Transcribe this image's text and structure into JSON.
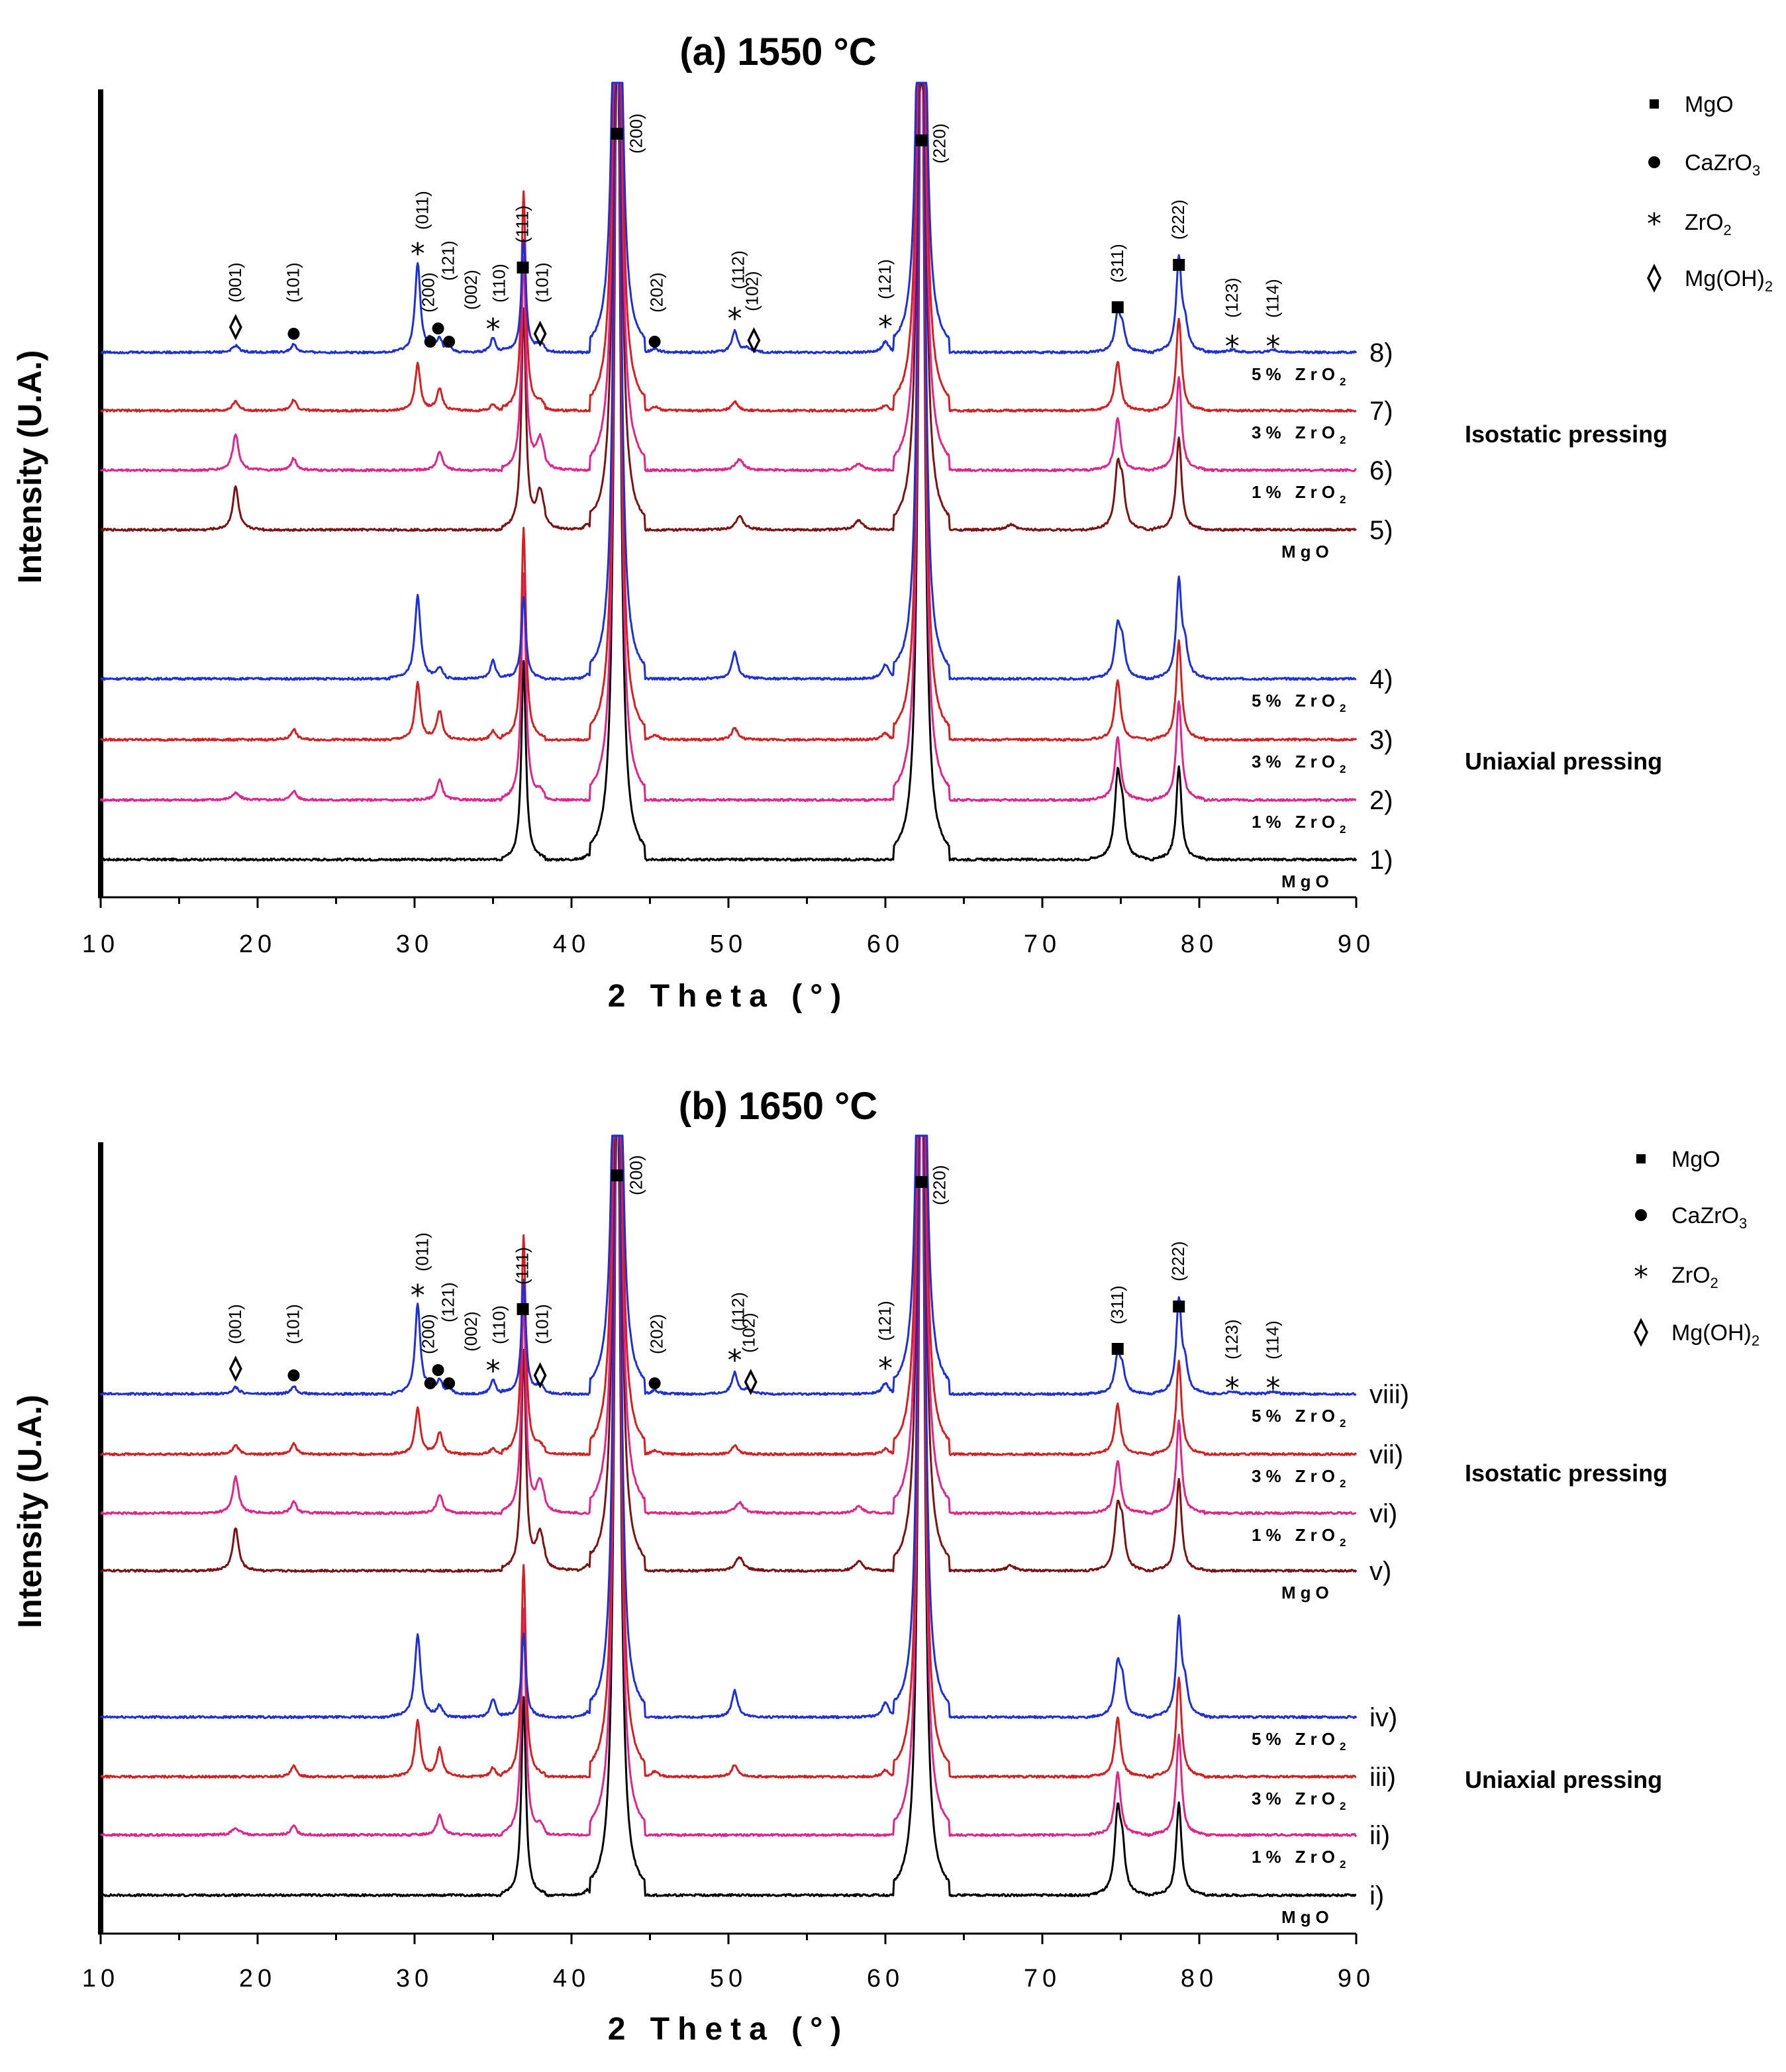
{
  "chart_data": [
    {
      "type": "line",
      "title": "(a) 1550 °C",
      "xlabel": "2 Theta (°)",
      "ylabel": "Intensity (U.A.)",
      "xlim": [
        10,
        90
      ],
      "xticks": [
        "10",
        "20",
        "30",
        "40",
        "50",
        "60",
        "70",
        "80",
        "90"
      ],
      "groups": [
        {
          "name": "Uniaxial pressing",
          "series_ids": [
            "1)",
            "2)",
            "3)",
            "4)"
          ]
        },
        {
          "name": "Isostatic pressing",
          "series_ids": [
            "5)",
            "6)",
            "7)",
            "8)"
          ]
        }
      ],
      "series": [
        {
          "id": "1)",
          "composition": "MgO",
          "color": "#000000"
        },
        {
          "id": "2)",
          "composition": "1% ZrO2",
          "color": "#e0248a"
        },
        {
          "id": "3)",
          "composition": "3% ZrO2",
          "color": "#d42020"
        },
        {
          "id": "4)",
          "composition": "5% ZrO2",
          "color": "#1d2fd8"
        },
        {
          "id": "5)",
          "composition": "MgO",
          "color": "#7d1212"
        },
        {
          "id": "6)",
          "composition": "1% ZrO2",
          "color": "#e0248a"
        },
        {
          "id": "7)",
          "composition": "3% ZrO2",
          "color": "#d42020"
        },
        {
          "id": "8)",
          "composition": "5% ZrO2",
          "color": "#1d2fd8"
        }
      ],
      "peak_annotations": [
        {
          "two_theta": 18.6,
          "hkl": "(001)",
          "phase": "Mg(OH)2"
        },
        {
          "two_theta": 22.3,
          "hkl": "(101)",
          "phase": "CaZrO3"
        },
        {
          "two_theta": 30.2,
          "hkl": "(011)",
          "phase": "ZrO2"
        },
        {
          "two_theta": 31.0,
          "hkl": "(200)",
          "phase": "CaZrO3"
        },
        {
          "two_theta": 31.5,
          "hkl": "(121)",
          "phase": "CaZrO3"
        },
        {
          "two_theta": 32.2,
          "hkl": "(002)",
          "phase": "CaZrO3"
        },
        {
          "two_theta": 35.0,
          "hkl": "(110)",
          "phase": "ZrO2"
        },
        {
          "two_theta": 36.9,
          "hkl": "(111)",
          "phase": "MgO"
        },
        {
          "two_theta": 38.0,
          "hkl": "(101)",
          "phase": "Mg(OH)2"
        },
        {
          "two_theta": 42.9,
          "hkl": "(200)",
          "phase": "MgO"
        },
        {
          "two_theta": 45.3,
          "hkl": "(202)",
          "phase": "CaZrO3"
        },
        {
          "two_theta": 50.4,
          "hkl": "(112)",
          "phase": "ZrO2"
        },
        {
          "two_theta": 51.2,
          "hkl": "(102)",
          "phase": "Mg(OH)2"
        },
        {
          "two_theta": 60.0,
          "hkl": "(121)",
          "phase": "ZrO2"
        },
        {
          "two_theta": 62.3,
          "hkl": "(220)",
          "phase": "MgO"
        },
        {
          "two_theta": 74.8,
          "hkl": "(311)",
          "phase": "MgO"
        },
        {
          "two_theta": 78.7,
          "hkl": "(222)",
          "phase": "MgO"
        },
        {
          "two_theta": 82.1,
          "hkl": "(123)",
          "phase": "ZrO2"
        },
        {
          "two_theta": 84.7,
          "hkl": "(114)",
          "phase": "ZrO2"
        }
      ]
    },
    {
      "type": "line",
      "title": "(b) 1650 °C",
      "xlabel": "2 Theta (°)",
      "ylabel": "Intensity (U.A.)",
      "xlim": [
        10,
        90
      ],
      "xticks": [
        "10",
        "20",
        "30",
        "40",
        "50",
        "60",
        "70",
        "80",
        "90"
      ],
      "groups": [
        {
          "name": "Uniaxial pressing",
          "series_ids": [
            "i)",
            "ii)",
            "iii)",
            "iv)"
          ]
        },
        {
          "name": "Isostatic pressing",
          "series_ids": [
            "v)",
            "vi)",
            "vii)",
            "viii)"
          ]
        }
      ],
      "series": [
        {
          "id": "i)",
          "composition": "MgO",
          "color": "#000000"
        },
        {
          "id": "ii)",
          "composition": "1% ZrO2",
          "color": "#e0248a"
        },
        {
          "id": "iii)",
          "composition": "3% ZrO2",
          "color": "#d42020"
        },
        {
          "id": "iv)",
          "composition": "5% ZrO2",
          "color": "#1d2fd8"
        },
        {
          "id": "v)",
          "composition": "MgO",
          "color": "#7d1212"
        },
        {
          "id": "vi)",
          "composition": "1% ZrO2",
          "color": "#e0248a"
        },
        {
          "id": "vii)",
          "composition": "3% ZrO2",
          "color": "#d42020"
        },
        {
          "id": "viii)",
          "composition": "5% ZrO2",
          "color": "#1d2fd8"
        }
      ],
      "peak_annotations": [
        {
          "two_theta": 18.6,
          "hkl": "(001)",
          "phase": "Mg(OH)2"
        },
        {
          "two_theta": 22.3,
          "hkl": "(101)",
          "phase": "CaZrO3"
        },
        {
          "two_theta": 30.2,
          "hkl": "(011)",
          "phase": "ZrO2"
        },
        {
          "two_theta": 31.0,
          "hkl": "(200)",
          "phase": "CaZrO3"
        },
        {
          "two_theta": 31.5,
          "hkl": "(121)",
          "phase": "CaZrO3"
        },
        {
          "two_theta": 32.2,
          "hkl": "(002)",
          "phase": "CaZrO3"
        },
        {
          "two_theta": 35.0,
          "hkl": "(110)",
          "phase": "ZrO2"
        },
        {
          "two_theta": 36.9,
          "hkl": "(111)",
          "phase": "MgO"
        },
        {
          "two_theta": 38.0,
          "hkl": "(101)",
          "phase": "Mg(OH)2"
        },
        {
          "two_theta": 42.9,
          "hkl": "(200)",
          "phase": "MgO"
        },
        {
          "two_theta": 45.3,
          "hkl": "(202)",
          "phase": "CaZrO3"
        },
        {
          "two_theta": 50.4,
          "hkl": "(112)",
          "phase": "ZrO2"
        },
        {
          "two_theta": 51.0,
          "hkl": "(102)",
          "phase": "Mg(OH)2"
        },
        {
          "two_theta": 60.0,
          "hkl": "(121)",
          "phase": "ZrO2"
        },
        {
          "two_theta": 62.3,
          "hkl": "(220)",
          "phase": "MgO"
        },
        {
          "two_theta": 74.8,
          "hkl": "(311)",
          "phase": "MgO"
        },
        {
          "two_theta": 78.7,
          "hkl": "(222)",
          "phase": "MgO"
        },
        {
          "two_theta": 82.1,
          "hkl": "(123)",
          "phase": "ZrO2"
        },
        {
          "two_theta": 84.7,
          "hkl": "(114)",
          "phase": "ZrO2"
        }
      ]
    }
  ],
  "legend": [
    {
      "phase": "MgO",
      "symbol": "square",
      "main": "MgO",
      "sub": "",
      "tail": ""
    },
    {
      "phase": "CaZrO3",
      "symbol": "circle",
      "main": "CaZrO",
      "sub": "3",
      "tail": ""
    },
    {
      "phase": "ZrO2",
      "symbol": "asterisk",
      "main": "ZrO",
      "sub": "2",
      "tail": ""
    },
    {
      "phase": "Mg(OH)2",
      "symbol": "diamond",
      "main": "Mg(OH)",
      "sub": "2",
      "tail": ""
    }
  ],
  "colors": {
    "axis": "#000000",
    "text": "#000000",
    "background": "#ffffff"
  }
}
